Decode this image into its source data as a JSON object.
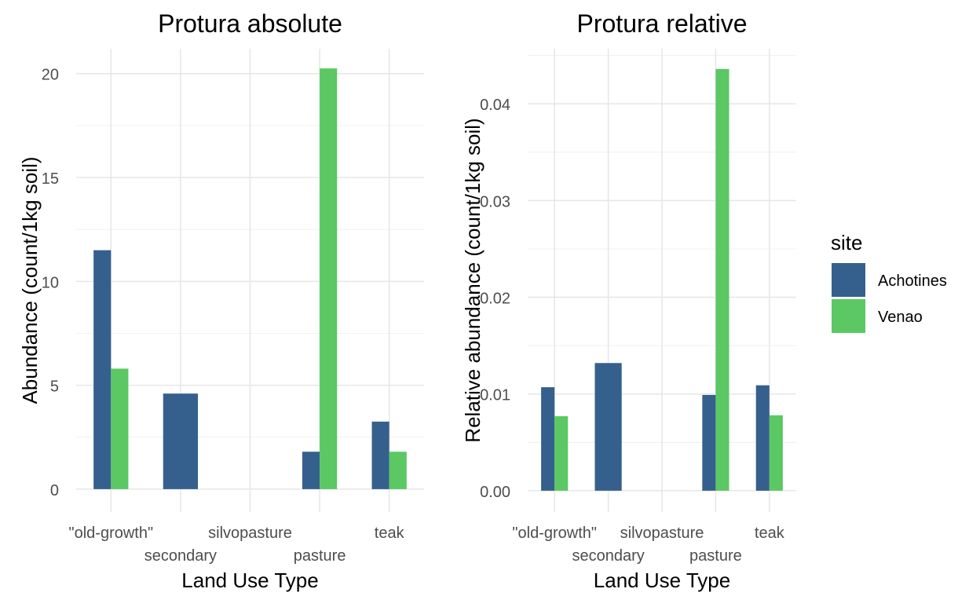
{
  "chart_data": [
    {
      "type": "bar",
      "title": "Protura absolute",
      "xlabel": "Land Use Type",
      "ylabel": "Abundance (count/1kg soil)",
      "categories": [
        "\"old-growth\"",
        "secondary",
        "silvopasture",
        "pasture",
        "teak"
      ],
      "ylim": [
        -1.1,
        21.2
      ],
      "yticks": [
        0,
        5,
        10,
        15,
        20
      ],
      "ytick_labels": [
        "0",
        "5",
        "10",
        "15",
        "20"
      ],
      "grid": true,
      "series": [
        {
          "name": "Achotines",
          "values": [
            11.5,
            4.6,
            null,
            1.8,
            3.25
          ]
        },
        {
          "name": "Venao",
          "values": [
            5.8,
            null,
            null,
            20.25,
            1.8
          ]
        }
      ]
    },
    {
      "type": "bar",
      "title": "Protura relative",
      "xlabel": "Land Use Type",
      "ylabel": "Relative abundance (count/1kg soil)",
      "categories": [
        "\"old-growth\"",
        "secondary",
        "silvopasture",
        "pasture",
        "teak"
      ],
      "ylim": [
        -0.0022,
        0.0457
      ],
      "yticks": [
        0,
        0.01,
        0.02,
        0.03,
        0.04
      ],
      "ytick_labels": [
        "0.00",
        "0.01",
        "0.02",
        "0.03",
        "0.04"
      ],
      "grid": true,
      "series": [
        {
          "name": "Achotines",
          "values": [
            0.0107,
            0.0132,
            null,
            0.0099,
            0.0109
          ]
        },
        {
          "name": "Venao",
          "values": [
            0.0077,
            null,
            null,
            0.0436,
            0.0078
          ]
        }
      ]
    }
  ],
  "legend": {
    "title": "site",
    "position": "right",
    "items": [
      {
        "label": "Achotines",
        "color": "#35608D"
      },
      {
        "label": "Venao",
        "color": "#5BC863"
      }
    ]
  }
}
